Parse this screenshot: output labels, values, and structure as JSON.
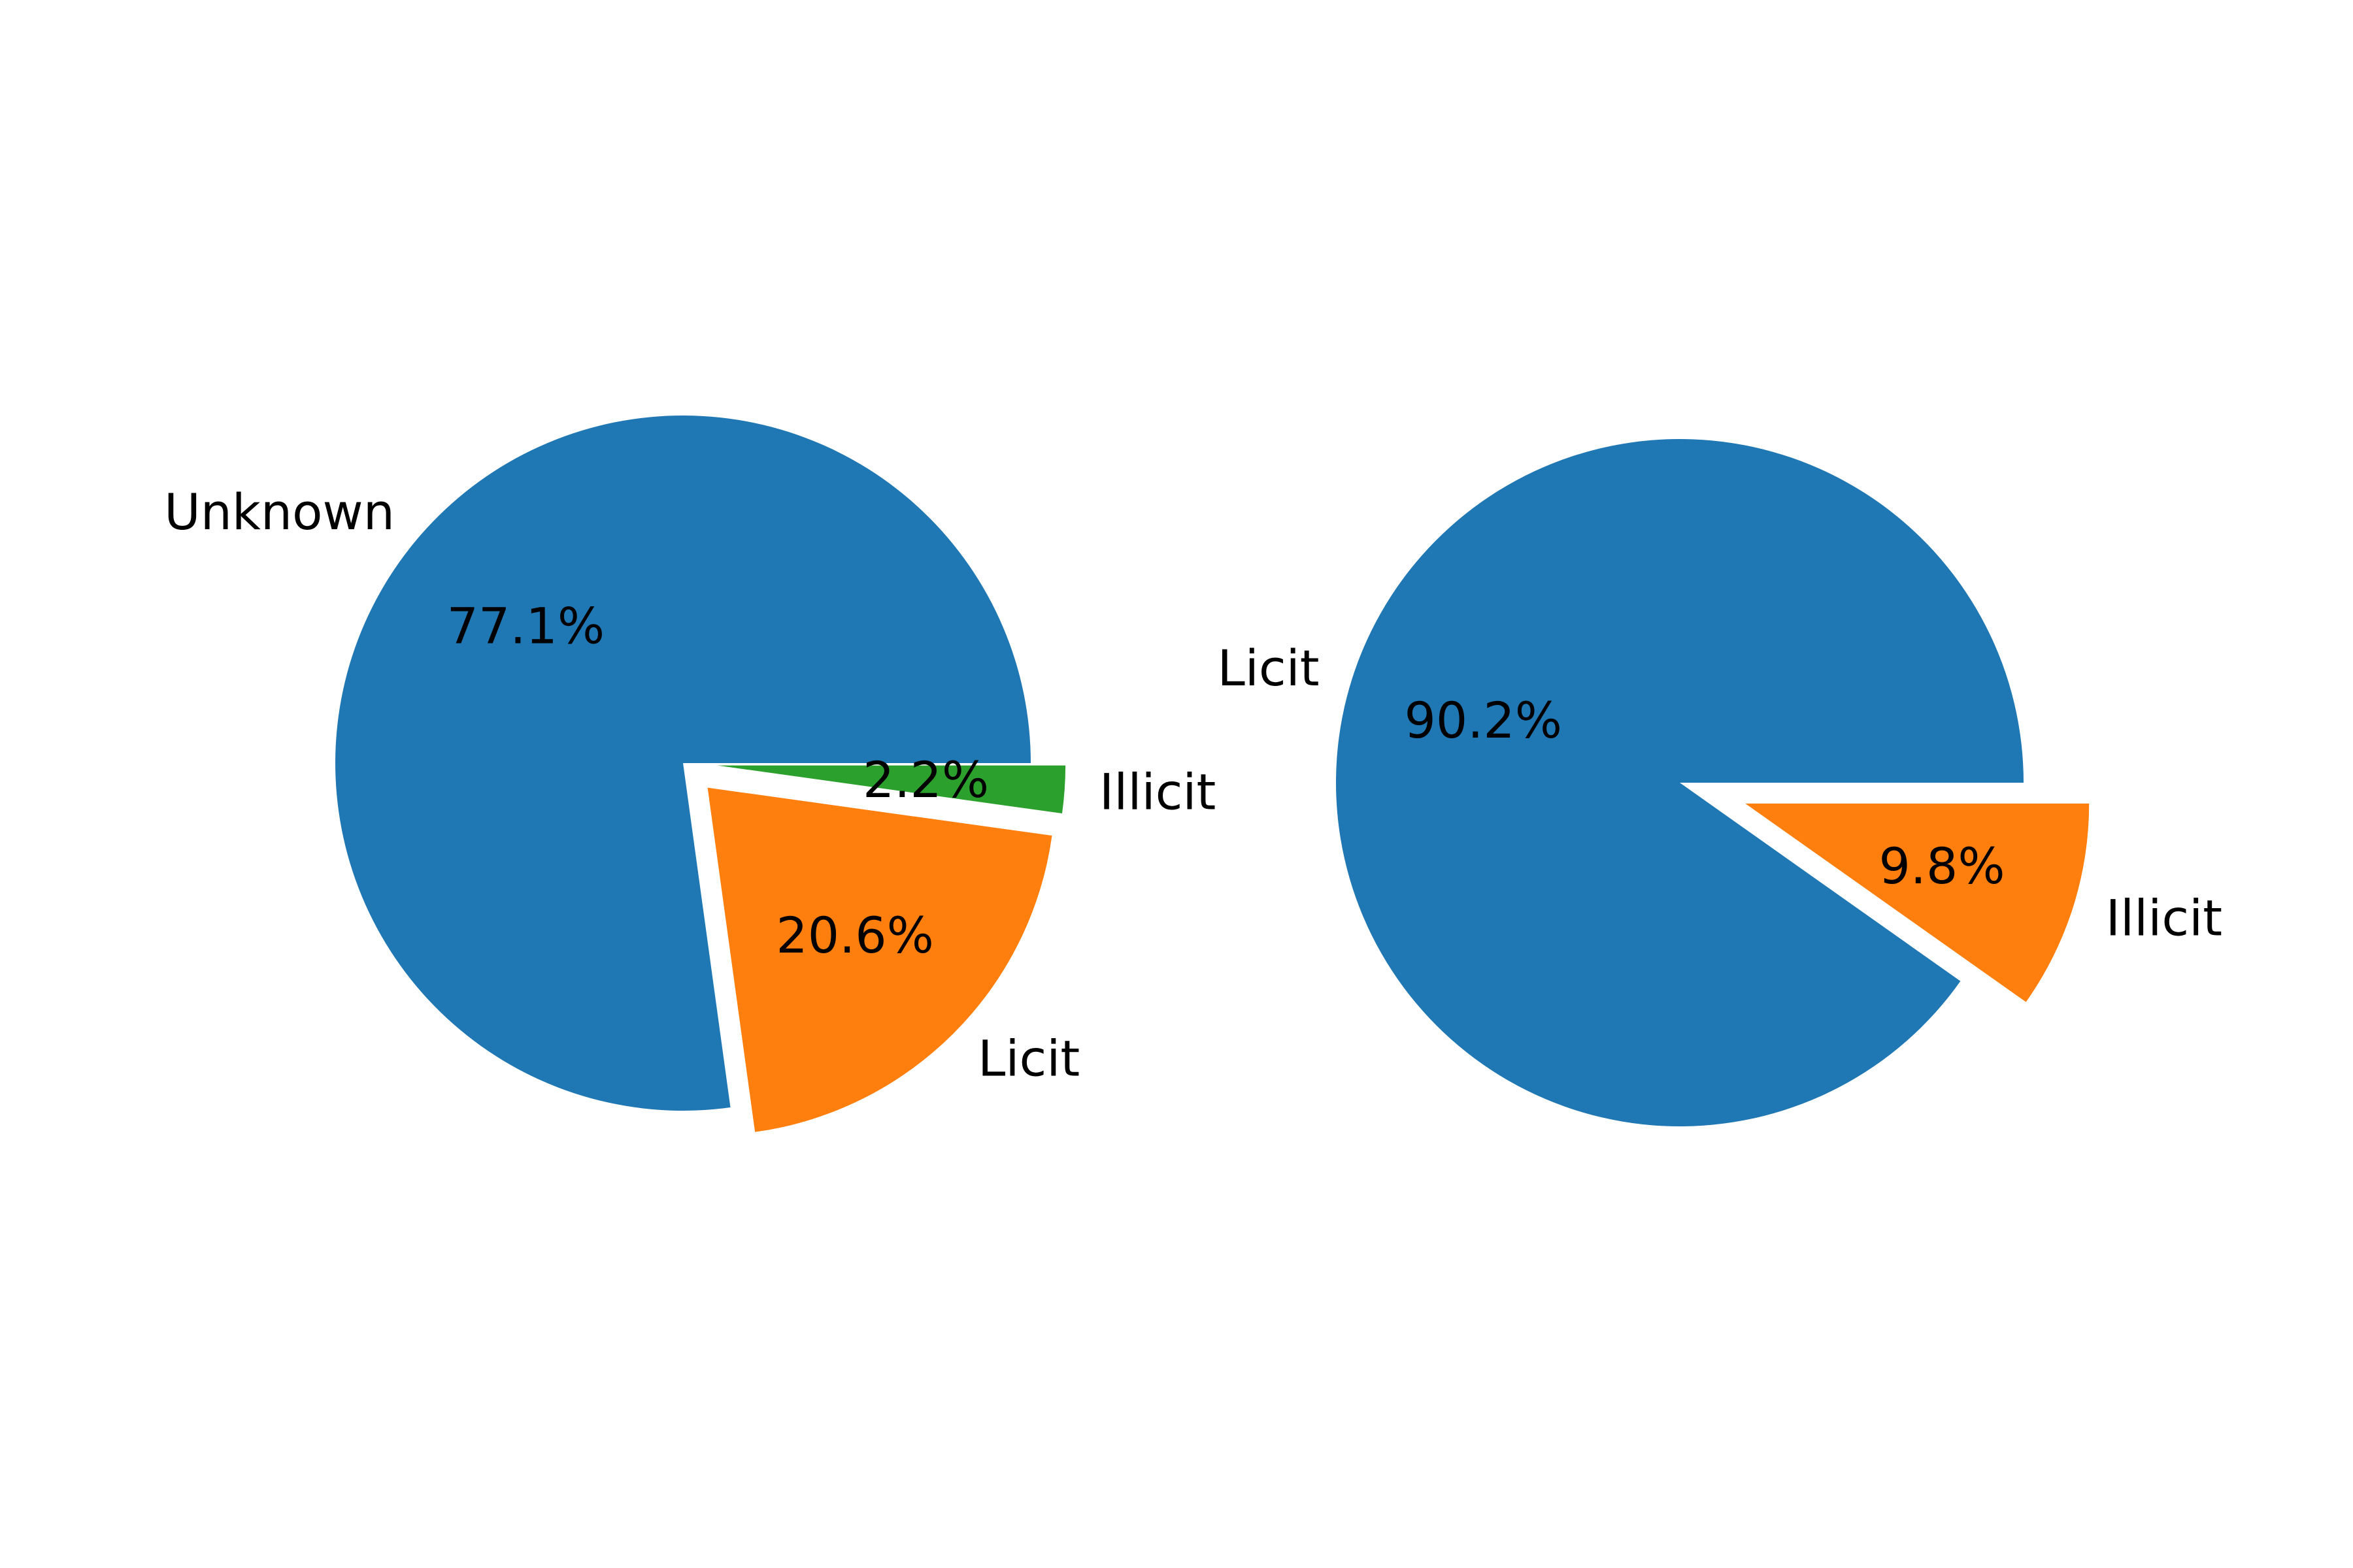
{
  "chart_data": [
    {
      "type": "pie",
      "title": "",
      "slices": [
        {
          "label": "Unknown",
          "value": 77.1,
          "pct_label": "77.1%",
          "color": "#1f77b4",
          "exploded": false
        },
        {
          "label": "Licit",
          "value": 20.6,
          "pct_label": "20.6%",
          "color": "#ff7f0e",
          "exploded": true
        },
        {
          "label": "Illicit",
          "value": 2.2,
          "pct_label": "2.2%",
          "color": "#2ca02c",
          "exploded": true
        }
      ]
    },
    {
      "type": "pie",
      "title": "",
      "slices": [
        {
          "label": "Licit",
          "value": 90.2,
          "pct_label": "90.2%",
          "color": "#1f77b4",
          "exploded": false
        },
        {
          "label": "Illicit",
          "value": 9.8,
          "pct_label": "9.8%",
          "color": "#ff7f0e",
          "exploded": true
        }
      ]
    }
  ]
}
